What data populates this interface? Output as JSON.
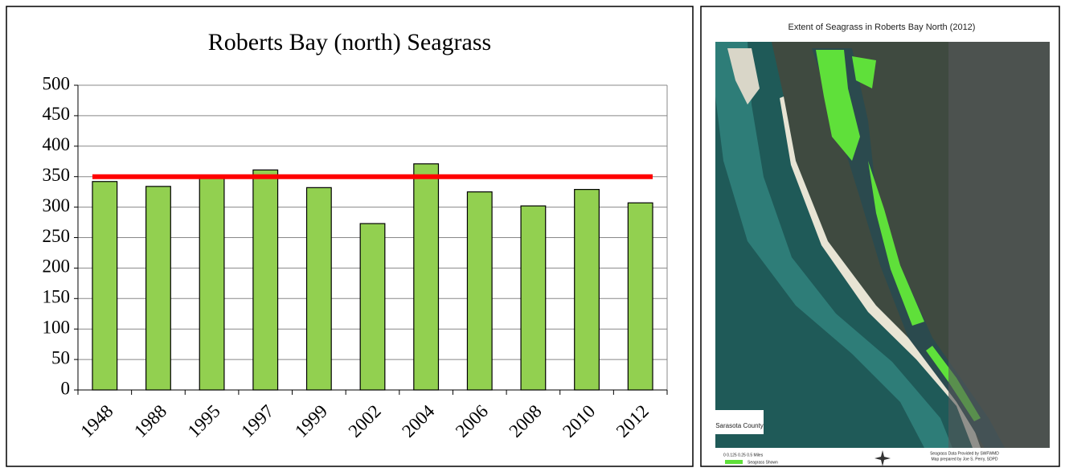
{
  "chart_data": {
    "type": "bar",
    "title": "Roberts Bay (north)  Seagrass",
    "categories": [
      "1948",
      "1988",
      "1995",
      "1997",
      "1999",
      "2002",
      "2004",
      "2006",
      "2008",
      "2010",
      "2012"
    ],
    "values": [
      342,
      334,
      348,
      361,
      332,
      273,
      371,
      325,
      302,
      329,
      307
    ],
    "color": "#92d050",
    "reference_line": 350,
    "reference_color": "#ff0000",
    "ylim": [
      0,
      500
    ],
    "yticks": [
      0,
      50,
      100,
      150,
      200,
      250,
      300,
      350,
      400,
      450,
      500
    ],
    "grid": true
  },
  "map": {
    "title": "Extent of Seagrass in Roberts Bay North (2012)",
    "logo": "Sarasota County",
    "legend": "Seagrass Shown",
    "scale": "0  0.125  0.25      0.5 Miles",
    "credit": [
      "Seagrass Data Provided by SWFWMD",
      "Map prepared by Joe S. Perry, SDPD"
    ]
  }
}
